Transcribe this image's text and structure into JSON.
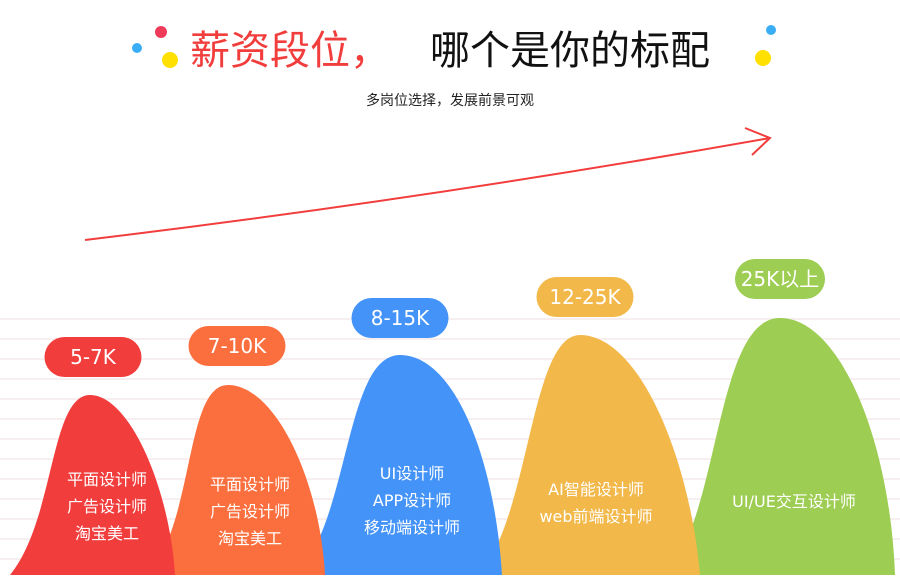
{
  "header": {
    "title_highlight": "薪资段位，",
    "title_rest": "哪个是你的标配",
    "subtitle": "多岗位选择，发展前景可观"
  },
  "colors": {
    "red": "#f23d3d",
    "orange": "#fb6e3d",
    "blue": "#4493f8",
    "yellow": "#f2b84a",
    "green": "#9dcd52",
    "arrow": "#f23d3d"
  },
  "tiers": [
    {
      "salary": "5-7K",
      "jobs": [
        "平面设计师",
        "广告设计师",
        "淘宝美工"
      ]
    },
    {
      "salary": "7-10K",
      "jobs": [
        "平面设计师",
        "广告设计师",
        "淘宝美工"
      ]
    },
    {
      "salary": "8-15K",
      "jobs": [
        "UI设计师",
        "APP设计师",
        "移动端设计师"
      ]
    },
    {
      "salary": "12-25K",
      "jobs": [
        "AI智能设计师",
        "web前端设计师"
      ]
    },
    {
      "salary": "25K以上",
      "jobs": [
        "UI/UE交互设计师"
      ]
    }
  ]
}
